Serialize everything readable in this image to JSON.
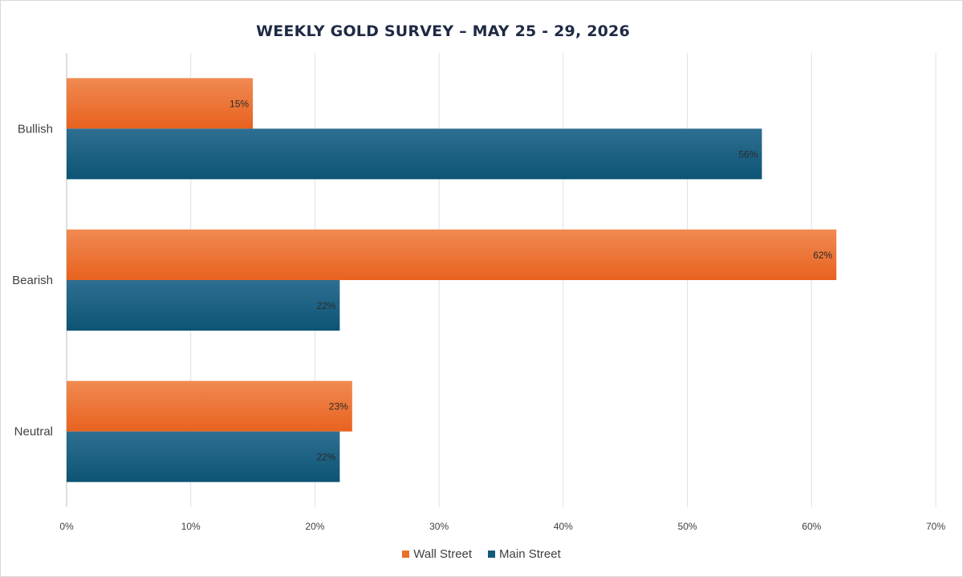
{
  "chart_data": {
    "type": "bar",
    "orientation": "horizontal",
    "title": "WEEKLY GOLD SURVEY – MAY 25 - 29, 2026",
    "categories": [
      "Bullish",
      "Bearish",
      "Neutral"
    ],
    "series": [
      {
        "name": "Wall Street",
        "values": [
          15,
          62,
          23
        ],
        "color": "#ed6f2b",
        "labels": [
          "15%",
          "62%",
          "23%"
        ]
      },
      {
        "name": "Main Street",
        "values": [
          56,
          22,
          22
        ],
        "color": "#135a7d",
        "labels": [
          "56%",
          "22%",
          "22%"
        ]
      }
    ],
    "xlim": [
      0,
      70
    ],
    "x_ticks": [
      0,
      10,
      20,
      30,
      40,
      50,
      60,
      70
    ],
    "x_tick_labels": [
      "0%",
      "10%",
      "20%",
      "30%",
      "40%",
      "50%",
      "60%",
      "70%"
    ],
    "grid": true,
    "legend_position": "bottom"
  }
}
